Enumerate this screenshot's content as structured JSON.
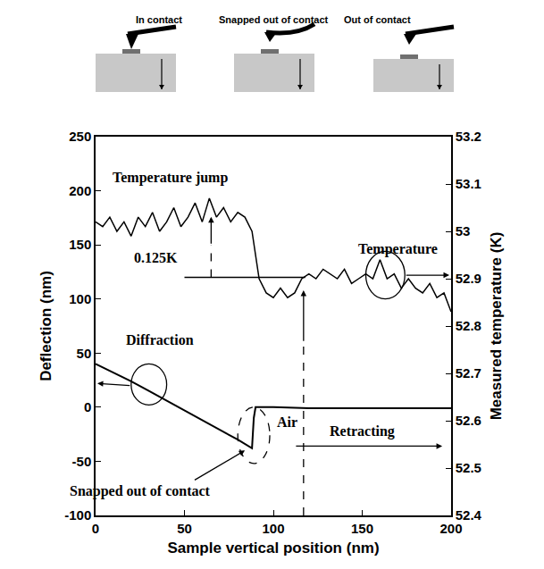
{
  "chart_data": {
    "type": "line",
    "x_title": "Sample vertical position (nm)",
    "y_title": "Deflection (nm)",
    "y2_title": "Measured temperature (K)",
    "xlim": [
      0,
      200
    ],
    "xticks": [
      0,
      50,
      100,
      150,
      200
    ],
    "ylim": [
      -100,
      250
    ],
    "yticks": [
      -100,
      -50,
      0,
      50,
      100,
      150,
      200,
      250
    ],
    "y2lim": [
      52.4,
      53.2
    ],
    "y2ticks": [
      52.4,
      52.5,
      52.6,
      52.7,
      52.8,
      52.9,
      53,
      53.1,
      53.2
    ],
    "grid": false,
    "series": [
      {
        "color": "#000000",
        "axis": "y",
        "x": [
          0,
          10,
          20,
          30,
          40,
          50,
          60,
          70,
          80,
          88,
          89,
          90,
          100,
          120,
          140,
          160,
          180,
          200
        ],
        "values": [
          40,
          32,
          24,
          15,
          6,
          -3,
          -12,
          -21,
          -30,
          -38,
          -10,
          0,
          0,
          -1,
          -1,
          -1,
          -1,
          -1
        ]
      },
      {
        "color": "#000000",
        "axis": "y2",
        "x": [
          0,
          4,
          8,
          12,
          16,
          20,
          24,
          28,
          32,
          36,
          40,
          44,
          48,
          52,
          56,
          60,
          64,
          68,
          72,
          76,
          80,
          84,
          88,
          92,
          96,
          100,
          104,
          108,
          112,
          116,
          120,
          124,
          128,
          132,
          136,
          140,
          144,
          148,
          152,
          156,
          160,
          164,
          168,
          172,
          176,
          180,
          184,
          188,
          192,
          196,
          200
        ],
        "values": [
          53.02,
          53.01,
          53.03,
          53.0,
          53.02,
          52.99,
          53.03,
          53.01,
          53.04,
          53.0,
          53.02,
          53.05,
          53.01,
          53.03,
          53.06,
          53.02,
          53.07,
          53.03,
          53.05,
          53.02,
          53.04,
          53.03,
          53.0,
          52.9,
          52.87,
          52.86,
          52.88,
          52.86,
          52.87,
          52.9,
          52.91,
          52.9,
          52.92,
          52.91,
          52.9,
          52.92,
          52.89,
          52.9,
          52.91,
          52.9,
          52.94,
          52.9,
          52.91,
          52.88,
          52.9,
          52.88,
          52.87,
          52.89,
          52.86,
          52.87,
          52.83
        ]
      }
    ],
    "annotations": [
      "Temperature jump",
      "0.125K",
      "Temperature",
      "Diffraction",
      "Air",
      "Snapped out of contact",
      "Retracting"
    ],
    "diagram_labels": [
      "In contact",
      "Snapped out of contact",
      "Out of contact"
    ]
  }
}
